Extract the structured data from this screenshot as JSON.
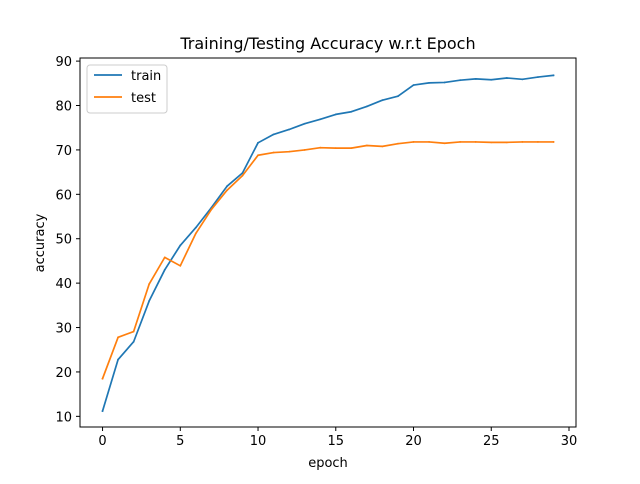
{
  "chart_data": {
    "type": "line",
    "title": "Training/Testing Accuracy w.r.t Epoch",
    "xlabel": "epoch",
    "ylabel": "accuracy",
    "xlim": [
      -1.45,
      30.45
    ],
    "ylim": [
      7.6,
      90.7
    ],
    "xticks": [
      0,
      5,
      10,
      15,
      20,
      25,
      30
    ],
    "yticks": [
      10,
      20,
      30,
      40,
      50,
      60,
      70,
      80,
      90
    ],
    "x": [
      0,
      1,
      2,
      3,
      4,
      5,
      6,
      7,
      8,
      9,
      10,
      11,
      12,
      13,
      14,
      15,
      16,
      17,
      18,
      19,
      20,
      21,
      22,
      23,
      24,
      25,
      26,
      27,
      28,
      29
    ],
    "series": [
      {
        "name": "train",
        "color": "#1f77b4",
        "values": [
          11.2,
          22.8,
          26.8,
          36.0,
          43.0,
          48.5,
          52.5,
          57.0,
          61.8,
          64.8,
          71.6,
          73.5,
          74.6,
          75.9,
          76.9,
          78.0,
          78.6,
          79.8,
          81.2,
          82.1,
          84.6,
          85.1,
          85.2,
          85.7,
          86.0,
          85.8,
          86.2,
          85.9,
          86.4,
          86.8
        ]
      },
      {
        "name": "test",
        "color": "#ff7f0e",
        "values": [
          18.5,
          27.8,
          29.1,
          39.8,
          45.8,
          43.9,
          51.2,
          56.6,
          60.9,
          64.2,
          68.8,
          69.4,
          69.6,
          70.0,
          70.5,
          70.4,
          70.4,
          71.0,
          70.8,
          71.4,
          71.8,
          71.8,
          71.5,
          71.8,
          71.8,
          71.7,
          71.7,
          71.8,
          71.8,
          71.8
        ]
      }
    ],
    "grid": false,
    "legend": "top-left"
  }
}
